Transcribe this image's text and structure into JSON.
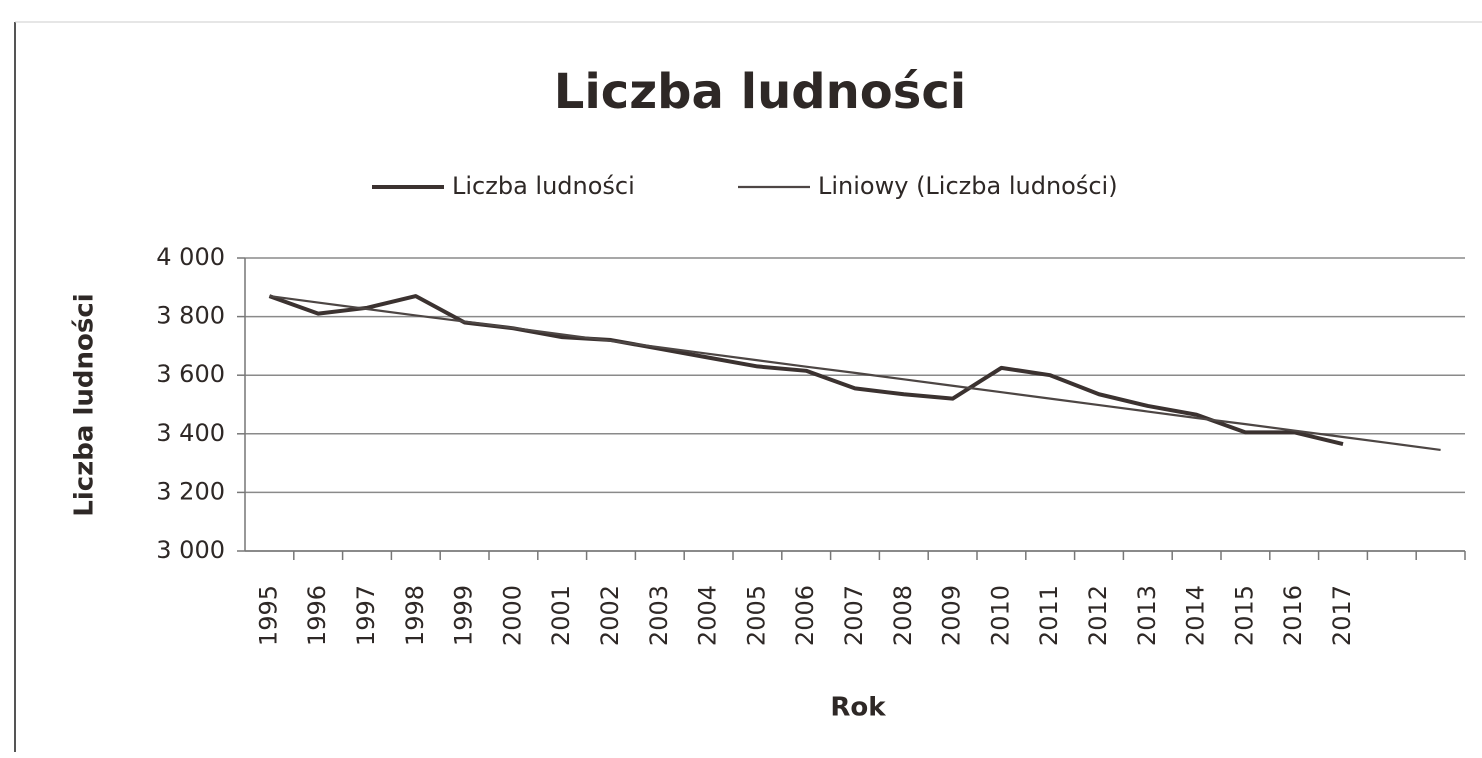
{
  "chart_data": {
    "type": "line",
    "title": "Liczba ludności",
    "x_label": "Rok",
    "y_label": "Liczba ludności",
    "categories": [
      "1995",
      "1996",
      "1997",
      "1998",
      "1999",
      "2000",
      "2001",
      "2002",
      "2003",
      "2004",
      "2005",
      "2006",
      "2007",
      "2008",
      "2009",
      "2010",
      "2011",
      "2012",
      "2013",
      "2014",
      "2015",
      "2016",
      "2017",
      null,
      null
    ],
    "series": [
      {
        "name": "Liczba ludności",
        "color": "#3b3230",
        "values": [
          3870,
          3810,
          3830,
          3870,
          3780,
          3760,
          3730,
          3720,
          3690,
          3660,
          3630,
          3615,
          3555,
          3535,
          3520,
          3625,
          3600,
          3535,
          3495,
          3465,
          3405,
          3405,
          3365,
          null,
          null
        ]
      },
      {
        "name": "Liniowy (Liczba ludności)",
        "color": "#4d4644",
        "values": [
          3870,
          3848,
          3826,
          3804,
          3783,
          3761,
          3739,
          3717,
          3695,
          3673,
          3651,
          3629,
          3608,
          3586,
          3564,
          3542,
          3520,
          3498,
          3476,
          3454,
          3433,
          3411,
          3389,
          3367,
          3345
        ]
      }
    ],
    "ylim": [
      3000,
      4000
    ],
    "yticks": [
      {
        "value": 3000,
        "label": "3 000"
      },
      {
        "value": 3200,
        "label": "3 200"
      },
      {
        "value": 3400,
        "label": "3 400"
      },
      {
        "value": 3600,
        "label": "3 600"
      },
      {
        "value": 3800,
        "label": "3 800"
      },
      {
        "value": 4000,
        "label": "4 000"
      }
    ],
    "grid": true,
    "legend": "top"
  }
}
